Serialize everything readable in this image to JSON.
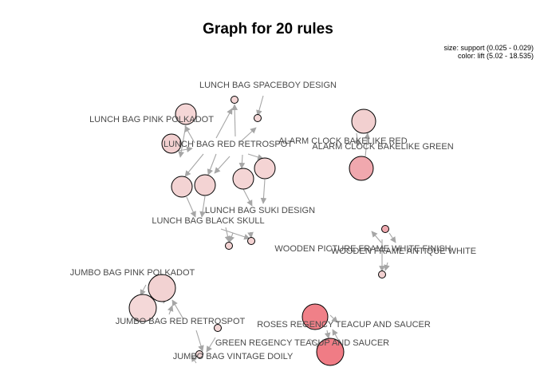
{
  "title": "Graph for 20 rules",
  "legend": {
    "size_text": "size: support (0.025 - 0.029)",
    "color_text": "color: lift (5.02 - 18.535)"
  },
  "colors": {
    "edge": "#a6a6a6",
    "node_stroke": "#000000",
    "label": "#4a4a4a"
  },
  "labels": [
    {
      "id": "lunch-bag-spaceboy-design",
      "text": "LUNCH BAG SPACEBOY DESIGN"
    },
    {
      "id": "lunch-bag-pink-polkadot",
      "text": "LUNCH BAG PINK POLKADOT"
    },
    {
      "id": "lunch-bag-red-retrospot",
      "text": "LUNCH BAG RED RETROSPOT"
    },
    {
      "id": "alarm-clock-bakelike-red",
      "text": "ALARM CLOCK BAKELIKE RED"
    },
    {
      "id": "alarm-clock-bakelike-green",
      "text": "ALARM CLOCK BAKELIKE GREEN"
    },
    {
      "id": "lunch-bag-suki-design",
      "text": "LUNCH BAG SUKI DESIGN"
    },
    {
      "id": "lunch-bag-black-skull",
      "text": "LUNCH BAG BLACK SKULL"
    },
    {
      "id": "wooden-picture-frame-white-finish",
      "text": "WOODEN PICTURE FRAME WHITE FINISH"
    },
    {
      "id": "wooden-frame-antique-white",
      "text": "WOODEN FRAME ANTIQUE WHITE"
    },
    {
      "id": "jumbo-bag-pink-polkadot",
      "text": "JUMBO BAG PINK POLKADOT"
    },
    {
      "id": "jumbo-bag-red-retrospot",
      "text": "JUMBO BAG RED RETROSPOT"
    },
    {
      "id": "roses-regency-teacup-and-saucer",
      "text": "ROSES REGENCY TEACUP AND SAUCER"
    },
    {
      "id": "green-regency-teacup-and-saucer",
      "text": "GREEN REGENCY TEACUP AND SAUCER"
    },
    {
      "id": "jumbo-bag-vintage-doily",
      "text": "JUMBO BAG VINTAGE DOILY"
    }
  ],
  "rules": [
    {
      "id": "r1",
      "fill": "#f5d6d6"
    },
    {
      "id": "r2",
      "fill": "#f2d0d0"
    },
    {
      "id": "r3",
      "fill": "#f3d3d3"
    },
    {
      "id": "r4",
      "fill": "#f3d3d3"
    },
    {
      "id": "r5",
      "fill": "#f4d5d5"
    },
    {
      "id": "r6",
      "fill": "#f4d4d4"
    },
    {
      "id": "r7",
      "fill": "#f4d6d6"
    },
    {
      "id": "r8",
      "fill": "#f4d7d7"
    },
    {
      "id": "r9",
      "fill": "#f3d3d3"
    },
    {
      "id": "r10",
      "fill": "#f3d2d2"
    },
    {
      "id": "r11",
      "fill": "#f2d0d0"
    },
    {
      "id": "r12",
      "fill": "#f0a8ae"
    },
    {
      "id": "r13",
      "fill": "#f0aab0"
    },
    {
      "id": "r14",
      "fill": "#f1d0d0"
    },
    {
      "id": "r15",
      "fill": "#f2d2d2"
    },
    {
      "id": "r16",
      "fill": "#f4d8d8"
    },
    {
      "id": "r17",
      "fill": "#f3d6d6"
    },
    {
      "id": "r18",
      "fill": "#f4d8d8"
    },
    {
      "id": "r19",
      "fill": "#f08088"
    },
    {
      "id": "r20",
      "fill": "#f07c85"
    }
  ]
}
